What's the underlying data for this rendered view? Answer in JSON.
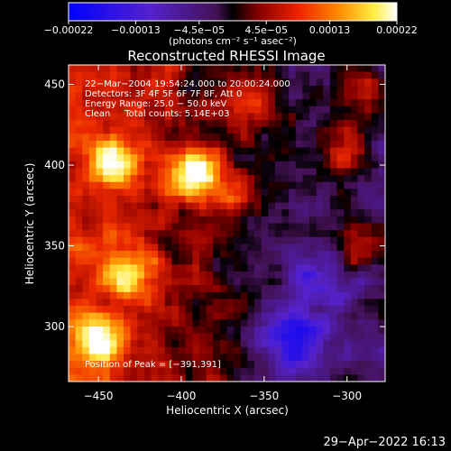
{
  "chart_data": {
    "type": "heatmap",
    "title": "Reconstructed RHESSI Image",
    "xlabel": "Heliocentric X (arcsec)",
    "ylabel": "Heliocentric Y (arcsec)",
    "xlim": [
      -468,
      -277
    ],
    "ylim": [
      266,
      462
    ],
    "xticks": [
      -450,
      -400,
      -350,
      -300
    ],
    "xtick_labels": [
      "−450",
      "−400",
      "−350",
      "−300"
    ],
    "yticks": [
      300,
      350,
      400,
      450
    ],
    "ytick_labels": [
      "300",
      "350",
      "400",
      "450"
    ],
    "colorbar": {
      "min": -0.00022,
      "max": 0.00022,
      "ticks": [
        -0.00022,
        -0.00013,
        -4.5e-05,
        4.5e-05,
        0.00013,
        0.00022
      ],
      "tick_labels": [
        "−0.00022",
        "−0.00013",
        "−4.5e−05",
        "4.5e−05",
        "0.00013",
        "0.00022"
      ],
      "units": "(photons cm⁻² s⁻¹ asec⁻²)"
    },
    "annotations": [
      "22−Mar−2004 19:54:24.000 to 20:00:24.000",
      "Detectors: 3F 4F 5F 6F 7F 8F, Att 0",
      "Energy Range: 25.0 − 50.0 keV",
      "Clean     Total counts: 5.14E+03"
    ],
    "peak_text": "Position of Peak = [−391,391]",
    "peak": [
      -391,
      391
    ],
    "bright_sources": [
      {
        "x": -392,
        "y": 395,
        "peak": 0.00022
      },
      {
        "x": -440,
        "y": 402,
        "peak": 0.00016
      },
      {
        "x": -432,
        "y": 332,
        "peak": 0.00015
      },
      {
        "x": -448,
        "y": 292,
        "peak": 0.00017
      },
      {
        "x": -362,
        "y": 378,
        "peak": 0.00012
      },
      {
        "x": -300,
        "y": 410,
        "peak": 0.00013
      },
      {
        "x": -292,
        "y": 352,
        "peak": 0.0001
      },
      {
        "x": -288,
        "y": 448,
        "peak": 0.00011
      },
      {
        "x": -360,
        "y": 440,
        "peak": 9e-05
      }
    ],
    "dark_regions": [
      {
        "x": -333,
        "y": 292,
        "value": -0.00018
      },
      {
        "x": -355,
        "y": 372,
        "value": -9e-05
      },
      {
        "x": -320,
        "y": 330,
        "value": -0.0001
      }
    ]
  },
  "footer": {
    "date": "29−Apr−2022 16:13"
  }
}
